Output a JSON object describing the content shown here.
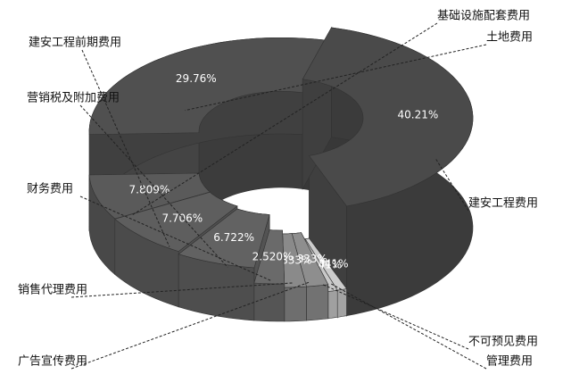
{
  "chart_data": {
    "type": "donut3d",
    "categories": [
      "建安工程费用",
      "土地费用",
      "基础设施配套费用",
      "建安工程前期费用",
      "营销税及附加费用",
      "财务费用",
      "销售代理费用",
      "广告宣传费用",
      "不可预见费用",
      "管理费用"
    ],
    "values": [
      40.21,
      29.76,
      7.809,
      7.706,
      6.722,
      2.52,
      1.833,
      1.833,
      0.8041,
      0.8041
    ],
    "value_labels": [
      "40.21%",
      "29.76%",
      "7.809%",
      "7.706%",
      "6.722%",
      "2.520%",
      "1.833%",
      "1.833%",
      "0.8041%",
      "0.8041%"
    ],
    "colors": [
      "#4a4a4a",
      "#505050",
      "#5a5a5a",
      "#5e5e5e",
      "#626262",
      "#6a6a6a",
      "#8a8a8a",
      "#8e8e8e",
      "#c8c8c8",
      "#cccccc"
    ]
  }
}
